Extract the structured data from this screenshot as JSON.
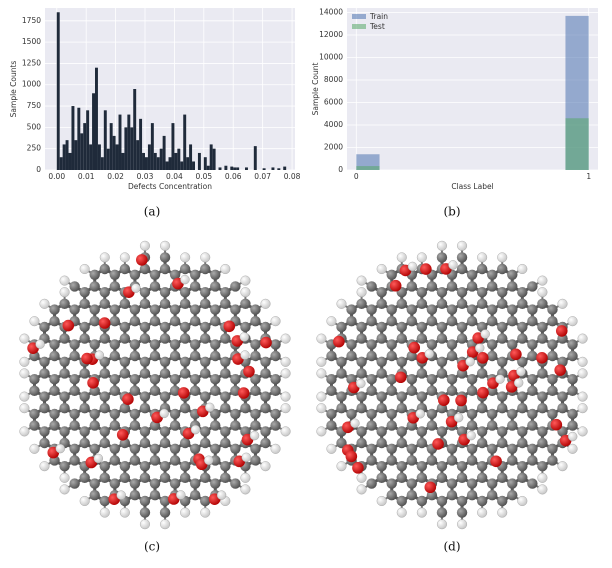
{
  "chart_data": [
    {
      "type": "histogram",
      "xlabel": "Defects Concentration",
      "ylabel": "Sample Counts",
      "color": "#1f2a3a",
      "bins": [
        0.0,
        0.001,
        0.002,
        0.003,
        0.004,
        0.005,
        0.006,
        0.007,
        0.008,
        0.009,
        0.01,
        0.011,
        0.012,
        0.013,
        0.014,
        0.015,
        0.016,
        0.017,
        0.018,
        0.019,
        0.02,
        0.021,
        0.022,
        0.023,
        0.024,
        0.025,
        0.026,
        0.027,
        0.028,
        0.029,
        0.03,
        0.031,
        0.032,
        0.033,
        0.034,
        0.035,
        0.036,
        0.037,
        0.038,
        0.039,
        0.04,
        0.041,
        0.042,
        0.043,
        0.044,
        0.045,
        0.046,
        0.047,
        0.048,
        0.049,
        0.05,
        0.051,
        0.052,
        0.053,
        0.054,
        0.055,
        0.056,
        0.057,
        0.058,
        0.059,
        0.06,
        0.061,
        0.062,
        0.063,
        0.064,
        0.065,
        0.066,
        0.067,
        0.068,
        0.069,
        0.07,
        0.071,
        0.072,
        0.073,
        0.074,
        0.075,
        0.076,
        0.077,
        0.078,
        0.079,
        0.08
      ],
      "values": [
        1850,
        150,
        300,
        350,
        200,
        750,
        350,
        730,
        430,
        550,
        700,
        300,
        900,
        1200,
        300,
        150,
        700,
        250,
        550,
        400,
        300,
        650,
        200,
        500,
        650,
        500,
        950,
        350,
        600,
        200,
        150,
        300,
        550,
        200,
        150,
        250,
        400,
        100,
        150,
        550,
        200,
        250,
        100,
        650,
        150,
        300,
        100,
        0,
        200,
        0,
        150,
        50,
        300,
        250,
        0,
        30,
        0,
        50,
        0,
        40,
        30,
        30,
        0,
        0,
        30,
        0,
        0,
        280,
        0,
        0,
        20,
        0,
        0,
        30,
        0,
        20,
        0,
        40,
        0,
        0
      ],
      "xlim": [
        -0.004,
        0.081
      ],
      "xticks": [
        {
          "value": 0,
          "label": "0.00"
        },
        {
          "value": 0.01,
          "label": "0.01"
        },
        {
          "value": 0.02,
          "label": "0.02"
        },
        {
          "value": 0.03,
          "label": "0.03"
        },
        {
          "value": 0.04,
          "label": "0.04"
        },
        {
          "value": 0.05,
          "label": "0.05"
        },
        {
          "value": 0.06,
          "label": "0.06"
        },
        {
          "value": 0.07,
          "label": "0.07"
        },
        {
          "value": 0.08,
          "label": "0.08"
        }
      ],
      "ylim": [
        0,
        1900
      ],
      "yticks": [
        0,
        250,
        500,
        750,
        1000,
        1250,
        1500,
        1750
      ],
      "grid": true
    },
    {
      "type": "histogram",
      "xlabel": "Class Label",
      "ylabel": "Sample Count",
      "bins": [
        0,
        0.1,
        0.2,
        0.3,
        0.4,
        0.5,
        0.6,
        0.7,
        0.8,
        0.9,
        1
      ],
      "series": [
        {
          "name": "Train",
          "color": "#4c72b0",
          "values": [
            1400,
            0,
            0,
            0,
            0,
            0,
            0,
            0,
            0,
            13700
          ]
        },
        {
          "name": "Test",
          "color": "#55a868",
          "values": [
            350,
            0,
            0,
            0,
            0,
            0,
            0,
            0,
            0,
            4600
          ]
        }
      ],
      "xlim": [
        -0.04,
        1.04
      ],
      "xticks": [
        0,
        1
      ],
      "ylim": [
        0,
        14400
      ],
      "yticks": [
        0,
        2000,
        4000,
        6000,
        8000,
        10000,
        12000,
        14000
      ],
      "grid": true,
      "legend": "upper left"
    }
  ],
  "captions": [
    "(a)",
    "(b)",
    "(c)",
    "(d)"
  ]
}
